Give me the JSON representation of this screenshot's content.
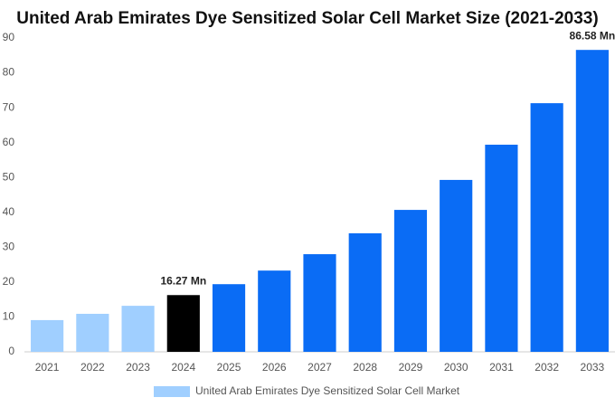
{
  "chart_data": {
    "type": "bar",
    "title": "United Arab Emirates Dye Sensitized Solar Cell Market Size (2021-2033)",
    "categories": [
      "2021",
      "2022",
      "2023",
      "2024",
      "2025",
      "2026",
      "2027",
      "2028",
      "2029",
      "2030",
      "2031",
      "2032",
      "2033"
    ],
    "series": [
      {
        "name": "United Arab Emirates Dye Sensitized Solar Cell Market",
        "color": "#a0cfff",
        "values": [
          9.1,
          10.9,
          13.2,
          16.27,
          19.4,
          23.3,
          28.0,
          34.0,
          40.7,
          49.3,
          59.4,
          71.3,
          86.58
        ],
        "colors": [
          "#a0cfff",
          "#a0cfff",
          "#a0cfff",
          "#000000",
          "#0a6cf5",
          "#0a6cf5",
          "#0a6cf5",
          "#0a6cf5",
          "#0a6cf5",
          "#0a6cf5",
          "#0a6cf5",
          "#0a6cf5",
          "#0a6cf5"
        ],
        "value_labels": [
          null,
          null,
          null,
          "16.27 Mn",
          null,
          null,
          null,
          null,
          null,
          null,
          null,
          null,
          "86.58 Mn"
        ]
      }
    ],
    "ylim": [
      0,
      90
    ],
    "yticks": [
      0,
      10,
      20,
      30,
      40,
      50,
      60,
      70,
      80,
      90
    ],
    "grid": false
  }
}
